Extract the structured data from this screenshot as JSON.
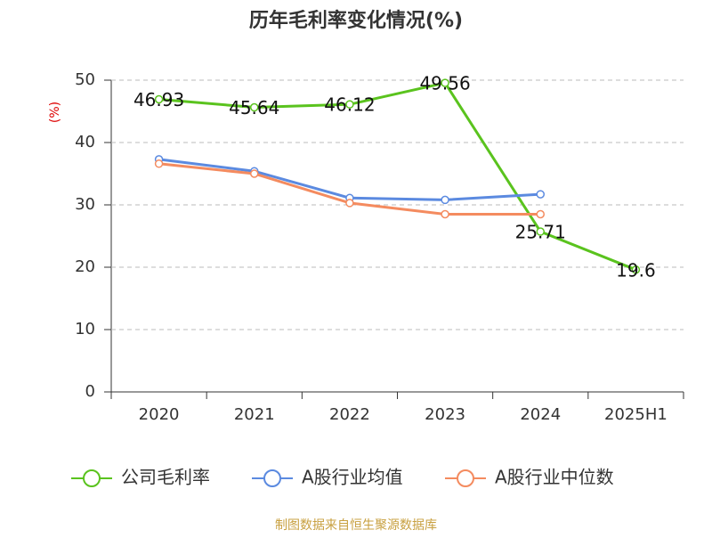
{
  "chart_data": {
    "type": "line",
    "title": "历年毛利率变化情况(%)",
    "y_label": "(%)",
    "categories": [
      "2020",
      "2021",
      "2022",
      "2023",
      "2024",
      "2025H1"
    ],
    "series": [
      {
        "name": "公司毛利率",
        "color": "#5ac31e",
        "values": [
          46.93,
          45.64,
          46.12,
          49.56,
          25.71,
          19.6
        ],
        "data_labels": true
      },
      {
        "name": "A股行业均值",
        "color": "#5b8ae0",
        "values": [
          37.3,
          35.4,
          31.1,
          30.8,
          31.7,
          null
        ]
      },
      {
        "name": "A股行业中位数",
        "color": "#f48b5f",
        "values": [
          36.6,
          35.0,
          30.3,
          28.5,
          28.5,
          null
        ]
      }
    ],
    "ylim": [
      0,
      50
    ],
    "yticks": [
      0,
      10,
      20,
      30,
      40,
      50
    ],
    "grid": true,
    "source": "制图数据来自恒生聚源数据库"
  }
}
